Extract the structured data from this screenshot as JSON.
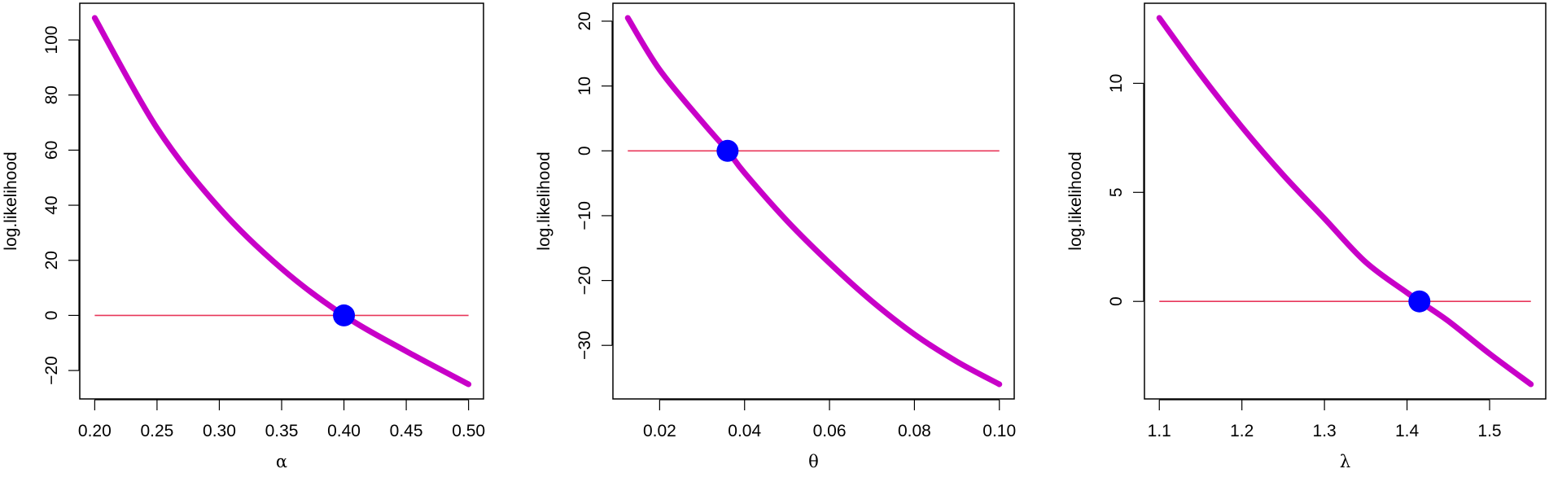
{
  "colors": {
    "curve": "#c800c8",
    "zero_line": "#e8375a",
    "point": "#0000ff",
    "axis": "#000000"
  },
  "chart_data": [
    {
      "type": "line",
      "xlabel": "α",
      "ylabel": "log.likelihood",
      "xlim": [
        0.2,
        0.5
      ],
      "ylim": [
        -25,
        108
      ],
      "xticks": [
        "0.20",
        "0.25",
        "0.30",
        "0.35",
        "0.40",
        "0.45",
        "0.50"
      ],
      "yticks": [
        "−20",
        "0",
        "20",
        "40",
        "60",
        "80",
        "100"
      ],
      "series": [
        {
          "x": [
            0.2,
            0.25,
            0.3,
            0.35,
            0.4,
            0.45,
            0.5
          ],
          "y": [
            108,
            68,
            39,
            17,
            0,
            -13,
            -25
          ]
        }
      ],
      "reference_line": {
        "y": 0
      },
      "point": {
        "x": 0.4,
        "y": 0
      },
      "grid": false
    },
    {
      "type": "line",
      "xlabel": "θ",
      "ylabel": "log.likelihood",
      "xlim": [
        0.0125,
        0.1
      ],
      "ylim": [
        -36,
        20.5
      ],
      "xticks": [
        "0.02",
        "0.04",
        "0.06",
        "0.08",
        "0.10"
      ],
      "yticks": [
        "−30",
        "−20",
        "−10",
        "0",
        "10",
        "20"
      ],
      "series": [
        {
          "x": [
            0.0125,
            0.02,
            0.03,
            0.036,
            0.04,
            0.05,
            0.06,
            0.07,
            0.08,
            0.09,
            0.1
          ],
          "y": [
            20.5,
            12.5,
            4.5,
            0,
            -3.4,
            -10.8,
            -17.3,
            -23.2,
            -28.3,
            -32.5,
            -36
          ]
        }
      ],
      "reference_line": {
        "y": 0
      },
      "point": {
        "x": 0.036,
        "y": 0
      },
      "grid": false
    },
    {
      "type": "line",
      "xlabel": "λ",
      "ylabel": "log.likelihood",
      "xlim": [
        1.1,
        1.55
      ],
      "ylim": [
        -3.8,
        13
      ],
      "xticks": [
        "1.1",
        "1.2",
        "1.3",
        "1.4",
        "1.5"
      ],
      "yticks": [
        "0",
        "5",
        "10"
      ],
      "series": [
        {
          "x": [
            1.1,
            1.15,
            1.2,
            1.25,
            1.3,
            1.35,
            1.4,
            1.415,
            1.45,
            1.5,
            1.55
          ],
          "y": [
            13,
            10.4,
            8.0,
            5.8,
            3.8,
            1.8,
            0.4,
            0,
            -0.9,
            -2.4,
            -3.8
          ]
        }
      ],
      "reference_line": {
        "y": 0
      },
      "point": {
        "x": 1.415,
        "y": 0
      },
      "grid": false
    }
  ]
}
